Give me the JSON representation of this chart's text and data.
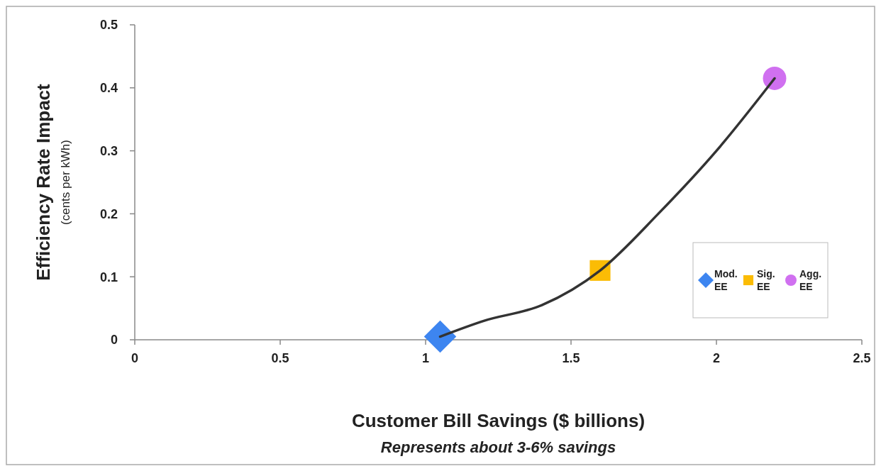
{
  "chart_data": {
    "type": "scatter",
    "xlabel": "Customer Bill Savings ($ billions)",
    "ylabel": "Efficiency Rate Impact\n(cents per kWh)",
    "annotations": [
      "Represents about 3-6% savings"
    ],
    "xlim": [
      0,
      2.5
    ],
    "xticks": [
      0,
      0.5,
      1,
      1.5,
      2,
      2.5
    ],
    "ylim": [
      0,
      0.5
    ],
    "yticks": [
      0,
      0.1,
      0.2,
      0.3,
      0.4,
      0.5
    ],
    "legend": "right",
    "series": [
      {
        "type": "line",
        "color": "#333333",
        "marker": "none",
        "x": [
          1.05,
          1.2,
          1.4,
          1.6,
          1.8,
          2.0,
          2.2
        ],
        "values": [
          0.005,
          0.03,
          0.055,
          0.11,
          0.2,
          0.3,
          0.415
        ]
      },
      {
        "name": "Mod.\nEE",
        "color": "#3d85f0",
        "marker": "diamond",
        "x": [
          1.05
        ],
        "values": [
          0.005
        ]
      },
      {
        "name": "Sig.\nEE",
        "color": "#fbbc05",
        "marker": "square",
        "x": [
          1.6
        ],
        "values": [
          0.11
        ]
      },
      {
        "name": "Agg.\nEE",
        "color": "#d070f0",
        "marker": "circle",
        "x": [
          2.2
        ],
        "values": [
          0.415
        ]
      }
    ]
  }
}
